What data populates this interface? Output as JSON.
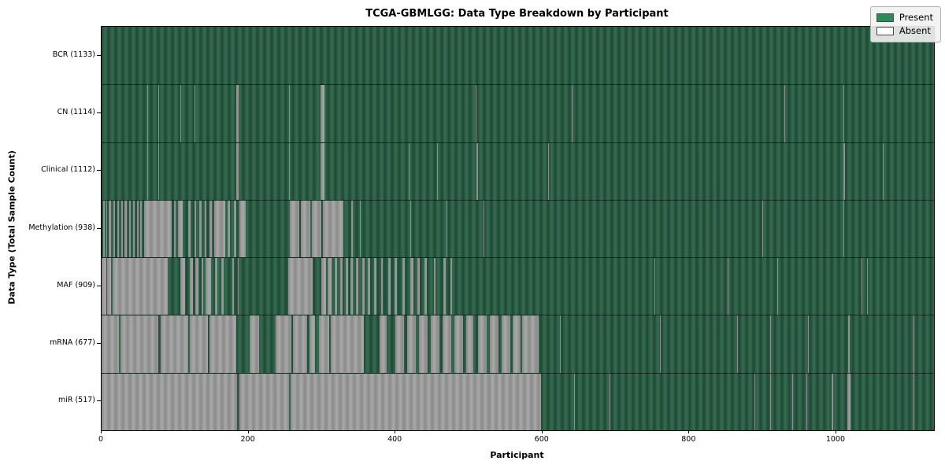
{
  "chart_data": {
    "type": "heatmap",
    "title": "TCGA-GBMLGG: Data Type Breakdown by Participant",
    "xlabel": "Participant",
    "ylabel": "Data Type (Total Sample Count)",
    "x_range": [
      0,
      1133
    ],
    "x_ticks": [
      0,
      200,
      400,
      600,
      800,
      1000
    ],
    "grid": false,
    "legend": {
      "position": "upper right",
      "entries": [
        {
          "label": "Present",
          "color": "#2e8b57"
        },
        {
          "label": "Absent",
          "color": "#ffffff"
        }
      ]
    },
    "rows": [
      {
        "name": "BCR",
        "label": "BCR (1133)",
        "present_count": 1133,
        "absent_segments": []
      },
      {
        "name": "CN",
        "label": "CN (1114)",
        "present_count": 1114,
        "absent_segments": [
          [
            62,
            63
          ],
          [
            77,
            78
          ],
          [
            96,
            97
          ],
          [
            107,
            108
          ],
          [
            127,
            128
          ],
          [
            183,
            187
          ],
          [
            255,
            256
          ],
          [
            298,
            303
          ],
          [
            509,
            510
          ],
          [
            640,
            641
          ],
          [
            929,
            930
          ],
          [
            1010,
            1011
          ]
        ]
      },
      {
        "name": "Clinical",
        "label": "Clinical (1112)",
        "present_count": 1112,
        "absent_segments": [
          [
            62,
            63
          ],
          [
            77,
            78
          ],
          [
            96,
            97
          ],
          [
            183,
            187
          ],
          [
            255,
            256
          ],
          [
            298,
            303
          ],
          [
            418,
            419
          ],
          [
            457,
            458
          ],
          [
            510,
            512
          ],
          [
            608,
            609
          ],
          [
            1010,
            1012
          ],
          [
            1063,
            1064
          ]
        ]
      },
      {
        "name": "Methylation",
        "label": "Methylation (938)",
        "present_count": 938,
        "absent_segments": [
          [
            2,
            4
          ],
          [
            6,
            8
          ],
          [
            10,
            13
          ],
          [
            16,
            18
          ],
          [
            21,
            24
          ],
          [
            27,
            29
          ],
          [
            31,
            34
          ],
          [
            37,
            40
          ],
          [
            43,
            45
          ],
          [
            48,
            50
          ],
          [
            53,
            55
          ],
          [
            58,
            95
          ],
          [
            99,
            101
          ],
          [
            104,
            110
          ],
          [
            118,
            121
          ],
          [
            126,
            129
          ],
          [
            133,
            136
          ],
          [
            140,
            143
          ],
          [
            147,
            150
          ],
          [
            153,
            168
          ],
          [
            172,
            175
          ],
          [
            180,
            183
          ],
          [
            188,
            196
          ],
          [
            256,
            269
          ],
          [
            271,
            284
          ],
          [
            286,
            299
          ],
          [
            301,
            329
          ],
          [
            340,
            342
          ],
          [
            352,
            353
          ],
          [
            420,
            421
          ],
          [
            470,
            471
          ],
          [
            520,
            521
          ],
          [
            899,
            900
          ],
          [
            1010,
            1011
          ],
          [
            1080,
            1081
          ]
        ]
      },
      {
        "name": "MAF",
        "label": "MAF (909)",
        "present_count": 909,
        "absent_segments": [
          [
            0,
            6
          ],
          [
            8,
            13
          ],
          [
            15,
            90
          ],
          [
            107,
            114
          ],
          [
            120,
            124
          ],
          [
            128,
            132
          ],
          [
            136,
            138
          ],
          [
            141,
            149
          ],
          [
            154,
            158
          ],
          [
            163,
            166
          ],
          [
            178,
            180
          ],
          [
            185,
            187
          ],
          [
            254,
            287
          ],
          [
            299,
            305
          ],
          [
            308,
            313
          ],
          [
            317,
            321
          ],
          [
            325,
            328
          ],
          [
            332,
            335
          ],
          [
            339,
            342
          ],
          [
            346,
            349
          ],
          [
            355,
            358
          ],
          [
            362,
            365
          ],
          [
            371,
            374
          ],
          [
            380,
            383
          ],
          [
            390,
            393
          ],
          [
            399,
            402
          ],
          [
            410,
            413
          ],
          [
            420,
            424
          ],
          [
            430,
            433
          ],
          [
            440,
            443
          ],
          [
            452,
            455
          ],
          [
            465,
            468
          ],
          [
            475,
            477
          ],
          [
            753,
            754
          ],
          [
            852,
            853
          ],
          [
            920,
            921
          ],
          [
            1034,
            1035
          ],
          [
            1042,
            1043
          ]
        ]
      },
      {
        "name": "mRNA",
        "label": "mRNA (677)",
        "present_count": 677,
        "absent_segments": [
          [
            0,
            24
          ],
          [
            26,
            77
          ],
          [
            80,
            118
          ],
          [
            120,
            145
          ],
          [
            147,
            183
          ],
          [
            201,
            214
          ],
          [
            237,
            258
          ],
          [
            260,
            280
          ],
          [
            283,
            290
          ],
          [
            296,
            310
          ],
          [
            312,
            357
          ],
          [
            378,
            388
          ],
          [
            400,
            412
          ],
          [
            416,
            428
          ],
          [
            432,
            444
          ],
          [
            448,
            460
          ],
          [
            464,
            476
          ],
          [
            480,
            492
          ],
          [
            496,
            506
          ],
          [
            512,
            524
          ],
          [
            528,
            540
          ],
          [
            544,
            556
          ],
          [
            560,
            570
          ],
          [
            572,
            595
          ],
          [
            624,
            625
          ],
          [
            663,
            664
          ],
          [
            760,
            761
          ],
          [
            865,
            866
          ],
          [
            910,
            911
          ],
          [
            961,
            963
          ],
          [
            1016,
            1018
          ],
          [
            1105,
            1106
          ]
        ]
      },
      {
        "name": "miR",
        "label": "miR (517)",
        "present_count": 517,
        "absent_segments": [
          [
            0,
            184
          ],
          [
            188,
            255
          ],
          [
            257,
            598
          ],
          [
            643,
            644
          ],
          [
            691,
            692
          ],
          [
            889,
            890
          ],
          [
            910,
            911
          ],
          [
            940,
            941
          ],
          [
            959,
            960
          ],
          [
            994,
            996
          ],
          [
            1015,
            1019
          ],
          [
            1105,
            1106
          ]
        ]
      }
    ]
  },
  "colors": {
    "present": "#2e8b57",
    "absent": "#ffffff",
    "present_render_light": "#366c50",
    "present_render_dark": "#1d4736",
    "absent_render_light": "#a9a9a9",
    "absent_render_dark": "#8a8a8a",
    "spine": "#000000",
    "row_divider": "#1a1a1a",
    "legend_background": "#f2f2f2",
    "legend_border": "#b0b0b0",
    "background": "#ffffff"
  }
}
